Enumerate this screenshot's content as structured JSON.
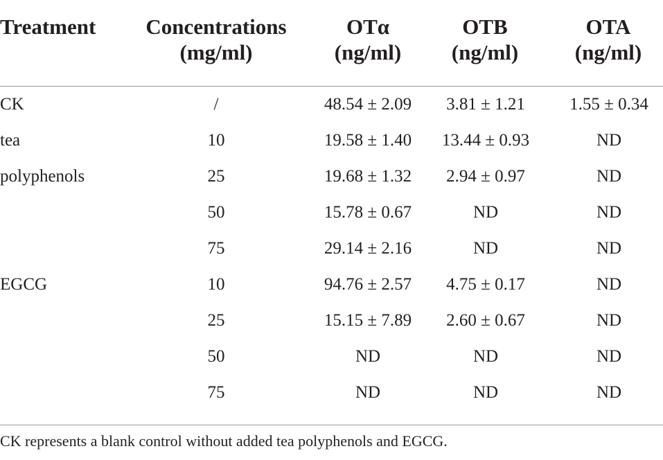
{
  "table": {
    "headers": {
      "treatment": [
        "Treatment"
      ],
      "concentrations": [
        "Concentrations",
        "(mg/ml)"
      ],
      "ota_alpha": [
        "OTα",
        "(ng/ml)"
      ],
      "otb": [
        "OTB",
        "(ng/ml)"
      ],
      "ota": [
        "OTA",
        "(ng/ml)"
      ]
    },
    "rows": [
      {
        "treatment": "CK",
        "concentration": "/",
        "ota_alpha": "48.54 ± 2.09",
        "otb": "3.81 ± 1.21",
        "ota": "1.55 ± 0.34"
      },
      {
        "treatment": "tea",
        "concentration": "10",
        "ota_alpha": "19.58 ± 1.40",
        "otb": "13.44 ± 0.93",
        "ota": "ND"
      },
      {
        "treatment": "polyphenols",
        "concentration": "25",
        "ota_alpha": "19.68 ± 1.32",
        "otb": "2.94 ± 0.97",
        "ota": "ND"
      },
      {
        "treatment": "",
        "concentration": "50",
        "ota_alpha": "15.78 ± 0.67",
        "otb": "ND",
        "ota": "ND"
      },
      {
        "treatment": "",
        "concentration": "75",
        "ota_alpha": "29.14 ± 2.16",
        "otb": "ND",
        "ota": "ND"
      },
      {
        "treatment": "EGCG",
        "concentration": "10",
        "ota_alpha": "94.76 ± 2.57",
        "otb": "4.75 ± 0.17",
        "ota": "ND"
      },
      {
        "treatment": "",
        "concentration": "25",
        "ota_alpha": "15.15 ± 7.89",
        "otb": "2.60 ± 0.67",
        "ota": "ND"
      },
      {
        "treatment": "",
        "concentration": "50",
        "ota_alpha": "ND",
        "otb": "ND",
        "ota": "ND"
      },
      {
        "treatment": "",
        "concentration": "75",
        "ota_alpha": "ND",
        "otb": "ND",
        "ota": "ND"
      }
    ],
    "footnote": "CK represents a blank control without added tea polyphenols and EGCG."
  }
}
